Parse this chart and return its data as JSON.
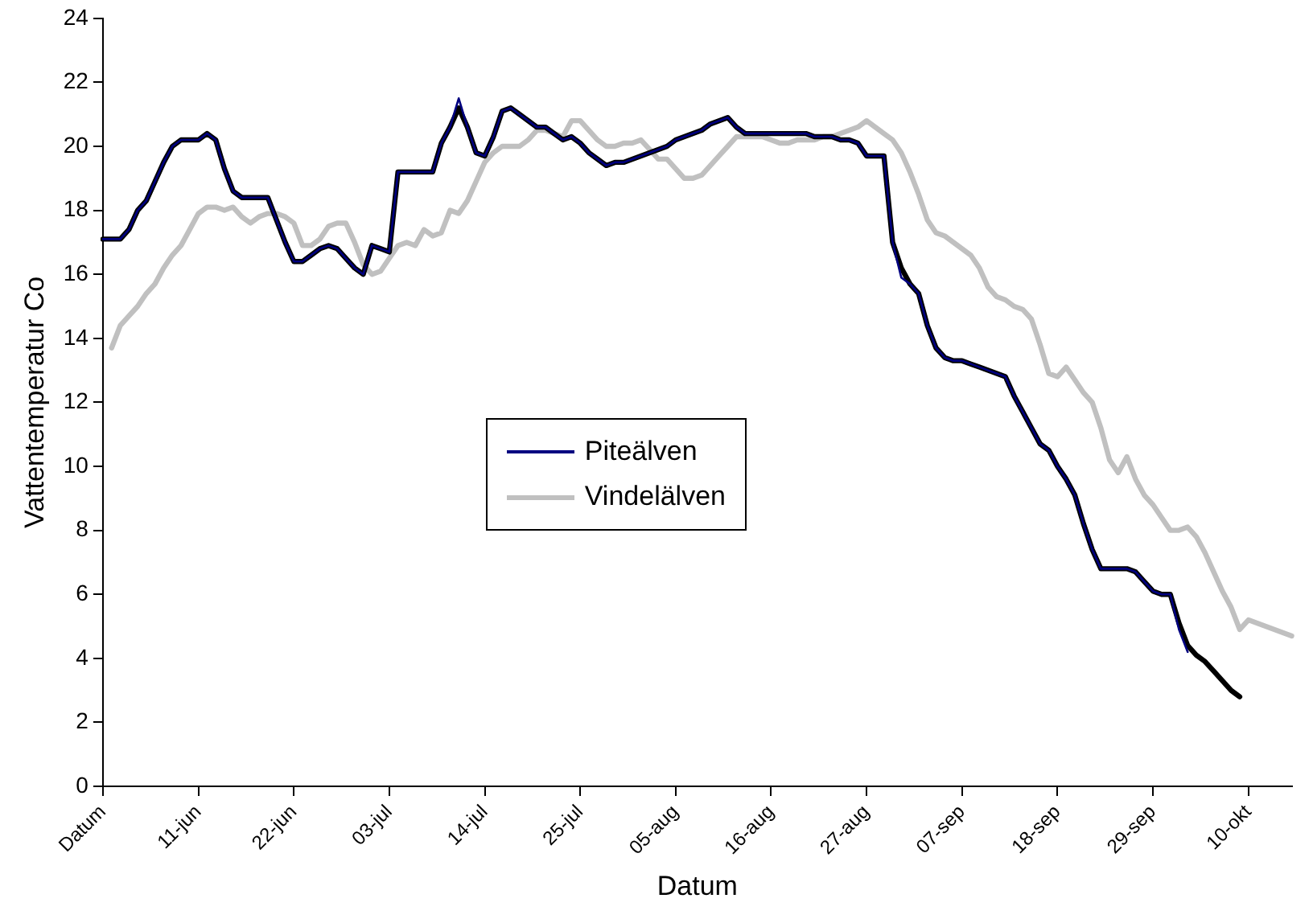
{
  "chart_data": {
    "type": "line",
    "xlabel": "Datum",
    "ylabel": "Vattentemperatur Co",
    "categories": [
      "Datum",
      null,
      null,
      null,
      null,
      null,
      null,
      null,
      null,
      null,
      null,
      "11-jun",
      null,
      null,
      null,
      null,
      null,
      null,
      null,
      null,
      null,
      null,
      "22-jun",
      null,
      null,
      null,
      null,
      null,
      null,
      null,
      null,
      null,
      null,
      "03-jul",
      null,
      null,
      null,
      null,
      null,
      null,
      null,
      null,
      null,
      null,
      "14-jul",
      null,
      null,
      null,
      null,
      null,
      null,
      null,
      null,
      null,
      null,
      "25-jul",
      null,
      null,
      null,
      null,
      null,
      null,
      null,
      null,
      null,
      null,
      "05-aug",
      null,
      null,
      null,
      null,
      null,
      null,
      null,
      null,
      null,
      null,
      "16-aug",
      null,
      null,
      null,
      null,
      null,
      null,
      null,
      null,
      null,
      null,
      "27-aug",
      null,
      null,
      null,
      null,
      null,
      null,
      null,
      null,
      null,
      null,
      "07-sep",
      null,
      null,
      null,
      null,
      null,
      null,
      null,
      null,
      null,
      null,
      "18-sep",
      null,
      null,
      null,
      null,
      null,
      null,
      null,
      null,
      null,
      null,
      "29-sep",
      null,
      null,
      null,
      null,
      null,
      null,
      null,
      null,
      null,
      null,
      "10-okt",
      null,
      null,
      null,
      null,
      null
    ],
    "series": [
      {
        "name": "Piteälven",
        "color": "#000080",
        "values": [
          17.1,
          17.1,
          17.1,
          17.4,
          18.0,
          18.3,
          18.9,
          19.5,
          20.0,
          20.2,
          20.2,
          20.2,
          20.4,
          20.2,
          19.3,
          18.6,
          18.4,
          18.4,
          18.4,
          18.4,
          17.7,
          17.0,
          16.4,
          16.4,
          16.6,
          16.8,
          16.9,
          16.8,
          16.5,
          16.2,
          16.0,
          16.9,
          16.8,
          16.7,
          19.2,
          19.2,
          19.2,
          19.2,
          19.2,
          20.1,
          20.6,
          21.5,
          20.6,
          19.8,
          19.7,
          20.3,
          21.1,
          21.2,
          21.0,
          20.8,
          20.6,
          20.6,
          20.4,
          20.2,
          20.3,
          20.1,
          19.8,
          19.6,
          19.4,
          19.5,
          19.5,
          19.6,
          19.7,
          19.8,
          19.9,
          20.0,
          20.2,
          20.3,
          20.4,
          20.5,
          20.7,
          20.8,
          20.9,
          20.6,
          20.4,
          20.4,
          20.4,
          20.4,
          20.4,
          20.4,
          20.4,
          20.4,
          20.3,
          20.3,
          20.3,
          20.2,
          20.2,
          20.1,
          19.7,
          19.7,
          19.7,
          17.0,
          15.9,
          15.7,
          15.4,
          14.4,
          13.7,
          13.4,
          13.3,
          13.3,
          13.2,
          13.1,
          13.0,
          12.9,
          12.8,
          12.2,
          11.7,
          11.2,
          10.7,
          10.5,
          10.0,
          9.6,
          9.1,
          8.2,
          7.4,
          6.8,
          6.8,
          6.8,
          6.8,
          6.7,
          6.4,
          6.1,
          6.0,
          6.0,
          4.9,
          4.2,
          null,
          null,
          null,
          null,
          null,
          null,
          null,
          null,
          null,
          null,
          null,
          null
        ]
      },
      {
        "name": "Vindelälven",
        "color": "#c0c0c0",
        "values": [
          null,
          13.7,
          14.4,
          14.7,
          15.0,
          15.4,
          15.7,
          16.2,
          16.6,
          16.9,
          17.4,
          17.9,
          18.1,
          18.1,
          18.0,
          18.1,
          17.8,
          17.6,
          17.8,
          17.9,
          17.9,
          17.8,
          17.6,
          16.9,
          16.9,
          17.1,
          17.5,
          17.6,
          17.6,
          17.0,
          16.3,
          16.0,
          16.1,
          16.5,
          16.9,
          17.0,
          16.9,
          17.4,
          17.2,
          17.3,
          18.0,
          17.9,
          18.3,
          18.9,
          19.5,
          19.8,
          20.0,
          20.0,
          20.0,
          20.2,
          20.5,
          20.5,
          20.4,
          20.3,
          20.8,
          20.8,
          20.5,
          20.2,
          20.0,
          20.0,
          20.1,
          20.1,
          20.2,
          19.9,
          19.6,
          19.6,
          19.3,
          19.0,
          19.0,
          19.1,
          19.4,
          19.7,
          20.0,
          20.3,
          20.3,
          20.3,
          20.3,
          20.2,
          20.1,
          20.1,
          20.2,
          20.2,
          20.2,
          20.3,
          20.3,
          20.4,
          20.5,
          20.6,
          20.8,
          20.6,
          20.4,
          20.2,
          19.8,
          19.2,
          18.5,
          17.7,
          17.3,
          17.2,
          17.0,
          16.8,
          16.6,
          16.2,
          15.6,
          15.3,
          15.2,
          15.0,
          14.9,
          14.6,
          13.8,
          12.9,
          12.8,
          13.1,
          12.7,
          12.3,
          12.0,
          11.2,
          10.2,
          9.8,
          10.3,
          9.6,
          9.1,
          8.8,
          8.4,
          8.0,
          8.0,
          8.1,
          7.8,
          7.3,
          6.7,
          6.1,
          5.6,
          4.9,
          5.2,
          5.1,
          5.0,
          4.9,
          4.8,
          4.7
        ]
      },
      {
        "color": "#000000",
        "values": [
          17.1,
          17.1,
          17.1,
          17.4,
          18.0,
          18.3,
          18.9,
          19.5,
          20.0,
          20.2,
          20.2,
          20.2,
          20.4,
          20.2,
          19.3,
          18.6,
          18.4,
          18.4,
          18.4,
          18.4,
          17.7,
          17.0,
          16.4,
          16.4,
          16.6,
          16.8,
          16.9,
          16.8,
          16.5,
          16.2,
          16.0,
          16.9,
          16.8,
          16.7,
          19.2,
          19.2,
          19.2,
          19.2,
          19.2,
          20.1,
          20.6,
          21.2,
          20.6,
          19.8,
          19.7,
          20.3,
          21.1,
          21.2,
          21.0,
          20.8,
          20.6,
          20.6,
          20.4,
          20.2,
          20.3,
          20.1,
          19.8,
          19.6,
          19.4,
          19.5,
          19.5,
          19.6,
          19.7,
          19.8,
          19.9,
          20.0,
          20.2,
          20.3,
          20.4,
          20.5,
          20.7,
          20.8,
          20.9,
          20.6,
          20.4,
          20.4,
          20.4,
          20.4,
          20.4,
          20.4,
          20.4,
          20.4,
          20.3,
          20.3,
          20.3,
          20.2,
          20.2,
          20.1,
          19.7,
          19.7,
          19.7,
          17.0,
          16.2,
          15.7,
          15.4,
          14.4,
          13.7,
          13.4,
          13.3,
          13.3,
          13.2,
          13.1,
          13.0,
          12.9,
          12.8,
          12.2,
          11.7,
          11.2,
          10.7,
          10.5,
          10.0,
          9.6,
          9.1,
          8.2,
          7.4,
          6.8,
          6.8,
          6.8,
          6.8,
          6.7,
          6.4,
          6.1,
          6.0,
          6.0,
          5.1,
          4.4,
          4.1,
          3.9,
          3.6,
          3.3,
          3.0,
          2.8,
          null,
          null,
          null,
          null,
          null,
          null
        ]
      }
    ],
    "ylim": [
      0,
      24
    ],
    "yticks": [
      0,
      2,
      4,
      6,
      8,
      10,
      12,
      14,
      16,
      18,
      20,
      22,
      24
    ],
    "grid": false,
    "legend": "center",
    "marker": "none",
    "line_style": "solid"
  }
}
